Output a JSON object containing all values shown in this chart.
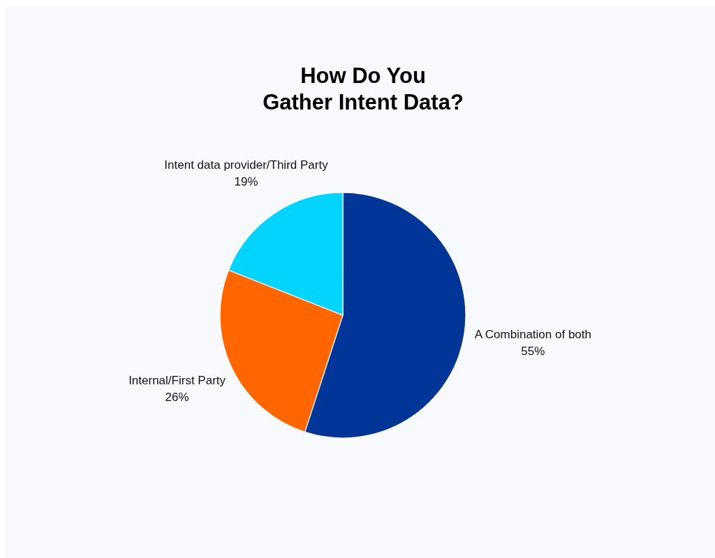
{
  "chart_data": {
    "type": "pie",
    "title": "How Do You\nGather Intent Data?",
    "categories": [
      "A Combination of both",
      "Internal/First Party",
      "Intent data provider/Third Party"
    ],
    "values": [
      55,
      26,
      19
    ],
    "colors": [
      "#023598",
      "#ff6600",
      "#00d4ff"
    ],
    "value_labels": [
      "55%",
      "26%",
      "19%"
    ]
  }
}
